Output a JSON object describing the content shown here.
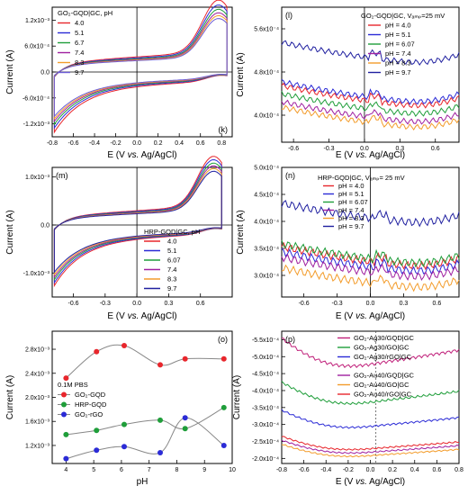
{
  "chart_data": [
    {
      "id": "k",
      "type": "line",
      "panel_label": "(k)",
      "legend_title": "GO₂-GQD|GC, pH",
      "xlabel": "E (V vs. Ag/AgCl)",
      "ylabel": "Current (A)",
      "xlim": [
        -0.8,
        0.9
      ],
      "ylim": [
        -0.0015,
        0.0015
      ],
      "xticks": [
        -0.8,
        -0.6,
        -0.4,
        -0.2,
        0.0,
        0.2,
        0.4,
        0.6,
        0.8
      ],
      "xtick_labels": [
        "-0.8",
        "-0.6",
        "-0.4",
        "-0.2",
        "0.0",
        "0.2",
        "0.4",
        "0.6",
        "0.8"
      ],
      "yticks": [
        -0.0012,
        -0.0006,
        0.0,
        0.0006,
        0.0012
      ],
      "ytick_labels": [
        "-1.2x10⁻³",
        "-6.0x10⁻⁴",
        "0.0",
        "6.0x10⁻⁴",
        "1.2x10⁻³"
      ],
      "legend_position": "top-left",
      "series": [
        {
          "name": "4.0",
          "color": "#e8262c",
          "amp": 1.0
        },
        {
          "name": "5.1",
          "color": "#2b2bd6",
          "amp": 0.93
        },
        {
          "name": "6.7",
          "color": "#1f9e3a",
          "amp": 0.87
        },
        {
          "name": "7.4",
          "color": "#a020a0",
          "amp": 0.82
        },
        {
          "name": "8.3",
          "color": "#f39c2b",
          "amp": 0.78
        },
        {
          "name": "9.7",
          "color": "#6b5bd6",
          "amp": 0.74
        }
      ]
    },
    {
      "id": "l",
      "type": "line",
      "panel_label": "(l)",
      "legend_title": "GO₂-GQD|GC, Vₐₘₚ=25 mV",
      "xlabel": "E (V vs. Ag/AgCl)",
      "ylabel": "Current (A)",
      "xlim": [
        -0.7,
        0.8
      ],
      "ylim": [
        0.00035,
        0.0006
      ],
      "xticks": [
        -0.6,
        -0.3,
        0.0,
        0.3,
        0.6
      ],
      "xtick_labels": [
        "-0.6",
        "-0.3",
        "0.0",
        "0.3",
        "0.6"
      ],
      "yticks": [
        0.0004,
        0.00048,
        0.00056
      ],
      "ytick_labels": [
        "4.0x10⁻⁴",
        "4.8x10⁻⁴",
        "5.6x10⁻⁴"
      ],
      "legend_position": "top-right",
      "series": [
        {
          "name": "pH = 4.0",
          "color": "#e8262c",
          "base": 0.000425
        },
        {
          "name": "pH = 5.1",
          "color": "#2b2bd6",
          "base": 0.000432
        },
        {
          "name": "pH = 6.07",
          "color": "#1f9e3a",
          "base": 0.00041
        },
        {
          "name": "pH = 7.4",
          "color": "#a020a0",
          "base": 0.000395
        },
        {
          "name": "pH = 8.3",
          "color": "#f39c2b",
          "base": 0.000385
        },
        {
          "name": "pH = 9.7",
          "color": "#2020a0",
          "base": 0.000505
        }
      ]
    },
    {
      "id": "m",
      "type": "line",
      "panel_label": "(m)",
      "legend_title": "HRP-GQD|GC, pH",
      "xlabel": "E (V vs. Ag/AgCl)",
      "ylabel": "Current (A)",
      "xlim": [
        -0.8,
        0.9
      ],
      "ylim": [
        -0.0015,
        0.0012
      ],
      "xticks": [
        -0.6,
        -0.3,
        0.0,
        0.3,
        0.6
      ],
      "xtick_labels": [
        "-0.6",
        "-0.3",
        "0.0",
        "0.3",
        "0.6"
      ],
      "yticks": [
        -0.001,
        0.0,
        0.001
      ],
      "ytick_labels": [
        "-1.0x10⁻³",
        "0.0",
        "1.0x10⁻³"
      ],
      "legend_position": "bottom-right",
      "series": [
        {
          "name": "4.0",
          "color": "#e8262c",
          "amp": 1.0
        },
        {
          "name": "5.1",
          "color": "#2b2bd6",
          "amp": 0.95
        },
        {
          "name": "6.07",
          "color": "#1f9e3a",
          "amp": 0.9
        },
        {
          "name": "7.4",
          "color": "#a020a0",
          "amp": 0.86
        },
        {
          "name": "8.3",
          "color": "#f39c2b",
          "amp": 0.82
        },
        {
          "name": "9.7",
          "color": "#2020a0",
          "amp": 0.78
        }
      ]
    },
    {
      "id": "n",
      "type": "line",
      "panel_label": "(n)",
      "legend_title": "HRP-GQD|GC, Vₐₘₚ= 25 mV",
      "xlabel": "E (V vs. Ag/AgCl)",
      "ylabel": "Current (A)",
      "xlim": [
        -0.8,
        0.8
      ],
      "ylim": [
        0.00026,
        0.0005
      ],
      "xticks": [
        -0.6,
        -0.3,
        0.0,
        0.3,
        0.6
      ],
      "xtick_labels": [
        "-0.6",
        "-0.3",
        "0.0",
        "0.3",
        "0.6"
      ],
      "yticks": [
        0.0003,
        0.00035,
        0.0004,
        0.00045,
        0.0005
      ],
      "ytick_labels": [
        "3.0x10⁻⁴",
        "3.5x10⁻⁴",
        "4.0x10⁻⁴",
        "4.5x10⁻⁴",
        "5.0x10⁻⁴"
      ],
      "legend_position": "top-center",
      "series": [
        {
          "name": "pH = 4.0",
          "color": "#e8262c",
          "base": 0.000325
        },
        {
          "name": "pH = 5.1",
          "color": "#2b2bd6",
          "base": 0.000315
        },
        {
          "name": "pH = 6.07",
          "color": "#1f9e3a",
          "base": 0.00033
        },
        {
          "name": "pH = 7.4",
          "color": "#a020a0",
          "base": 0.000305
        },
        {
          "name": "pH = 8.3",
          "color": "#f39c2b",
          "base": 0.000285
        },
        {
          "name": "pH = 9.7",
          "color": "#2020a0",
          "base": 0.000405
        }
      ]
    },
    {
      "id": "o",
      "type": "scatter",
      "panel_label": "(o)",
      "legend_title": "0.1M PBS",
      "xlabel": "pH",
      "ylabel": "Current (A)",
      "xlim": [
        3.5,
        10.0
      ],
      "ylim": [
        0.0009,
        0.0031
      ],
      "xticks": [
        4,
        5,
        6,
        7,
        8,
        9,
        10
      ],
      "xtick_labels": [
        "4",
        "5",
        "6",
        "7",
        "8",
        "9",
        "10"
      ],
      "yticks": [
        0.0012,
        0.0016,
        0.002,
        0.0024,
        0.0028
      ],
      "ytick_labels": [
        "1.2x10⁻³",
        "1.6x10⁻³",
        "2.0x10⁻³",
        "2.4x10⁻³",
        "2.8x10⁻³"
      ],
      "legend_position": "center-left",
      "series": [
        {
          "name": "GO₂-GQD",
          "color": "#e8262c",
          "x": [
            4.0,
            5.1,
            6.1,
            7.4,
            8.3,
            9.7
          ],
          "values": [
            0.00232,
            0.00276,
            0.00286,
            0.00254,
            0.00264,
            0.00264
          ]
        },
        {
          "name": "HRP-GQD",
          "color": "#1f9e3a",
          "x": [
            4.0,
            5.1,
            6.1,
            7.4,
            8.3,
            9.7
          ],
          "values": [
            0.00138,
            0.00145,
            0.00155,
            0.00162,
            0.00148,
            0.00183
          ]
        },
        {
          "name": "GO₂-rGO",
          "color": "#2b2bd6",
          "x": [
            4.0,
            5.1,
            6.1,
            7.4,
            8.3,
            9.7
          ],
          "values": [
            0.00098,
            0.00112,
            0.00118,
            0.00108,
            0.00166,
            0.0012
          ]
        }
      ]
    },
    {
      "id": "p",
      "type": "line",
      "panel_label": "(p)",
      "legend_title": "",
      "xlabel": "E (V vs. Ag/AgCl)",
      "ylabel": "Current (A)",
      "xlim": [
        -0.8,
        0.8
      ],
      "ylim": [
        -0.000185,
        -0.000575
      ],
      "xticks": [
        -0.8,
        -0.6,
        -0.4,
        -0.2,
        0.0,
        0.2,
        0.4,
        0.6,
        0.8
      ],
      "xtick_labels": [
        "-0.8",
        "-0.6",
        "-0.4",
        "-0.2",
        "0.0",
        "0.2",
        "0.4",
        "0.6",
        "0.8"
      ],
      "yticks": [
        -0.0002,
        -0.00025,
        -0.0003,
        -0.00035,
        -0.0004,
        -0.00045,
        -0.0005,
        -0.00055
      ],
      "ytick_labels": [
        "-2.0x10⁻⁴",
        "-2.5x10⁻⁴",
        "-3.0x10⁻⁴",
        "-3.5x10⁻⁴",
        "-4.0x10⁻⁴",
        "-4.5x10⁻⁴",
        "-5.0x10⁻⁴",
        "-5.5x10⁻⁴"
      ],
      "legend_position": "top",
      "series": [
        {
          "name": "GO₂-Ag30/GQD|GC",
          "color": "#c0207a",
          "base": -0.00047
        },
        {
          "name": "GO₂-Ag30/GO|GC",
          "color": "#1f9e3a",
          "base": -0.00036
        },
        {
          "name": "GO₂-Ag30/rGO|GC",
          "color": "#2b2bd6",
          "base": -0.00029
        },
        {
          "name": "GO₂-Au40/GQD|GC",
          "color": "#a020a0",
          "base": -0.000215
        },
        {
          "name": "GO₂-Au40/GO|GC",
          "color": "#f39c2b",
          "base": -0.000205
        },
        {
          "name": "GO₂-Au40/rGO|GC",
          "color": "#e8262c",
          "base": -0.000225
        }
      ]
    }
  ]
}
